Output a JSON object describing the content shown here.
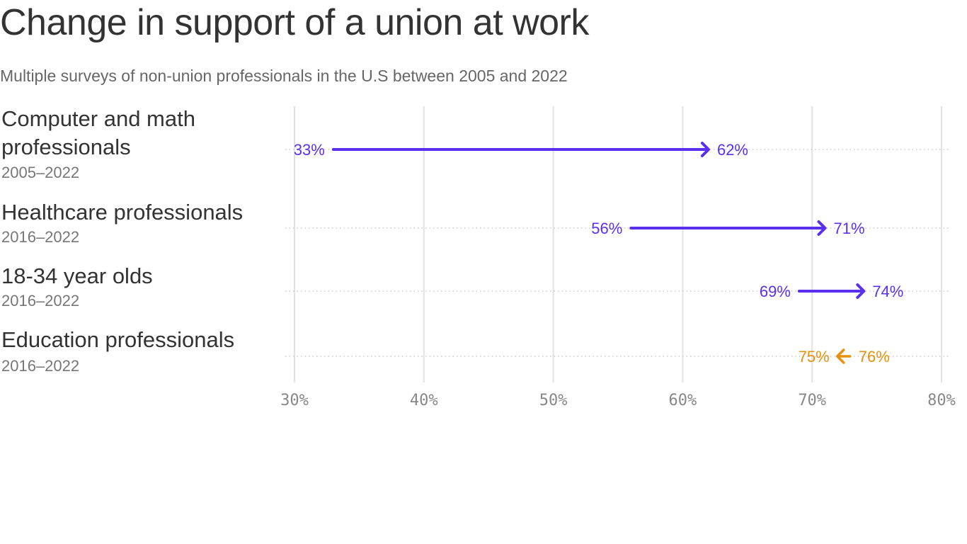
{
  "title": "Change in support of a union at work",
  "subtitle": "Multiple surveys of non-union professionals in the U.S between 2005 and 2022",
  "chart_data": {
    "type": "arrow-dot",
    "xlim": [
      30,
      80
    ],
    "x_ticks": [
      "30%",
      "40%",
      "50%",
      "60%",
      "70%",
      "80%"
    ],
    "x_tick_values": [
      30,
      40,
      50,
      60,
      70,
      80
    ],
    "grid": true,
    "colors": {
      "increase": "#5b2ff0",
      "decrease": "#e8900c"
    },
    "rows": [
      {
        "category": "Computer and math professionals",
        "years": "2005–2022",
        "start": 33,
        "end": 62,
        "start_label": "33%",
        "end_label": "62%"
      },
      {
        "category": "Healthcare professionals",
        "years": "2016–2022",
        "start": 56,
        "end": 71,
        "start_label": "56%",
        "end_label": "71%"
      },
      {
        "category": "18-34 year olds",
        "years": "2016–2022",
        "start": 69,
        "end": 74,
        "start_label": "69%",
        "end_label": "74%"
      },
      {
        "category": "Education professionals",
        "years": "2016–2022",
        "start": 76,
        "end": 75,
        "start_label": "76%",
        "end_label": "75%"
      }
    ]
  }
}
